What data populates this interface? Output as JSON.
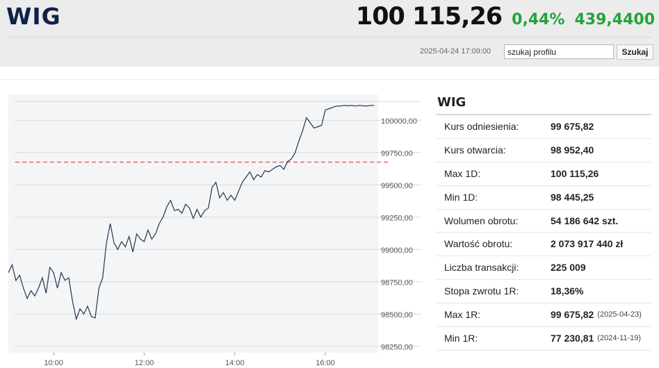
{
  "header": {
    "title": "WIG",
    "price": "100 115,26",
    "change_pct": "0,44%",
    "change_abs": "439,4400",
    "timestamp": "2025-04-24 17:09:00",
    "search_value": "szukaj profilu",
    "search_button": "Szukaj"
  },
  "colors": {
    "title": "#0f2348",
    "positive": "#23a33a",
    "line": "#23334f",
    "reference": "#e05050",
    "plot_bg": "#f4f5f7"
  },
  "panel": {
    "title": "WIG",
    "rows": [
      {
        "label": "Kurs odniesienia:",
        "value": "99 675,82",
        "date": ""
      },
      {
        "label": "Kurs otwarcia:",
        "value": "98 952,40",
        "date": ""
      },
      {
        "label": "Max 1D:",
        "value": "100 115,26",
        "date": ""
      },
      {
        "label": "Min 1D:",
        "value": "98 445,25",
        "date": ""
      },
      {
        "label": "Wolumen obrotu:",
        "value": "54 186 642 szt.",
        "date": ""
      },
      {
        "label": "Wartość obrotu:",
        "value": "2 073 917 440 zł",
        "date": ""
      },
      {
        "label": "Liczba transakcji:",
        "value": "225 009",
        "date": ""
      },
      {
        "label": "Stopa zwrotu 1R:",
        "value": "18,36%",
        "date": ""
      },
      {
        "label": "Max 1R:",
        "value": "99 675,82",
        "date": "(2025-04-23)"
      },
      {
        "label": "Min 1R:",
        "value": "77 230,81",
        "date": "(2024-11-19)"
      }
    ]
  },
  "chart_data": {
    "type": "line",
    "title": "",
    "xlabel": "",
    "ylabel": "",
    "ylim": [
      98200,
      100200
    ],
    "xlim": [
      "09:00",
      "17:10"
    ],
    "x_ticks": [
      "10:00",
      "12:00",
      "14:00",
      "16:00"
    ],
    "y_ticks": [
      "100000,00",
      "99750,00",
      "99500,00",
      "99250,00",
      "99000,00",
      "98750,00",
      "98500,00",
      "98250,00"
    ],
    "y_tick_values": [
      100000,
      99750,
      99500,
      99250,
      99000,
      98750,
      98500,
      98250
    ],
    "reference_line": 99675.82,
    "grid": true,
    "series": [
      {
        "x": [
          "09:00",
          "09:05",
          "09:10",
          "09:15",
          "09:20",
          "09:25",
          "09:30",
          "09:35",
          "09:40",
          "09:45",
          "09:50",
          "09:55",
          "10:00",
          "10:05",
          "10:10",
          "10:15",
          "10:20",
          "10:25",
          "10:30",
          "10:35",
          "10:40",
          "10:45",
          "10:50",
          "10:55",
          "11:00",
          "11:05",
          "11:10",
          "11:15",
          "11:20",
          "11:25",
          "11:30",
          "11:35",
          "11:40",
          "11:45",
          "11:50",
          "11:55",
          "12:00",
          "12:05",
          "12:10",
          "12:15",
          "12:20",
          "12:25",
          "12:30",
          "12:35",
          "12:40",
          "12:45",
          "12:50",
          "12:55",
          "13:00",
          "13:05",
          "13:10",
          "13:15",
          "13:20",
          "13:25",
          "13:30",
          "13:35",
          "13:40",
          "13:45",
          "13:50",
          "13:55",
          "14:00",
          "14:05",
          "14:10",
          "14:15",
          "14:20",
          "14:25",
          "14:30",
          "14:35",
          "14:40",
          "14:45",
          "14:50",
          "14:55",
          "15:00",
          "15:05",
          "15:10",
          "15:15",
          "15:20",
          "15:25",
          "15:30",
          "15:35",
          "15:40",
          "15:45",
          "15:50",
          "15:55",
          "16:00",
          "16:05",
          "16:10",
          "16:15",
          "16:20",
          "16:25",
          "16:30",
          "16:35",
          "16:40",
          "16:45",
          "16:50",
          "16:55",
          "17:00",
          "17:05"
        ],
        "y": [
          98820,
          98880,
          98760,
          98800,
          98700,
          98620,
          98680,
          98640,
          98700,
          98780,
          98660,
          98860,
          98820,
          98700,
          98820,
          98760,
          98780,
          98600,
          98460,
          98540,
          98500,
          98560,
          98480,
          98470,
          98700,
          98780,
          99050,
          99200,
          99050,
          99000,
          99060,
          99020,
          99100,
          98980,
          99120,
          99080,
          99060,
          99150,
          99080,
          99120,
          99200,
          99250,
          99330,
          99380,
          99300,
          99310,
          99280,
          99350,
          99320,
          99240,
          99310,
          99250,
          99300,
          99320,
          99480,
          99520,
          99400,
          99440,
          99380,
          99420,
          99380,
          99450,
          99520,
          99560,
          99600,
          99540,
          99580,
          99560,
          99610,
          99600,
          99620,
          99640,
          99650,
          99620,
          99680,
          99700,
          99750,
          99840,
          99920,
          100020,
          99980,
          99940,
          99950,
          99960,
          100080,
          100090,
          100100,
          100110,
          100110,
          100115,
          100112,
          100115,
          100110,
          100115,
          100112,
          100110,
          100115,
          100115
        ]
      }
    ]
  }
}
